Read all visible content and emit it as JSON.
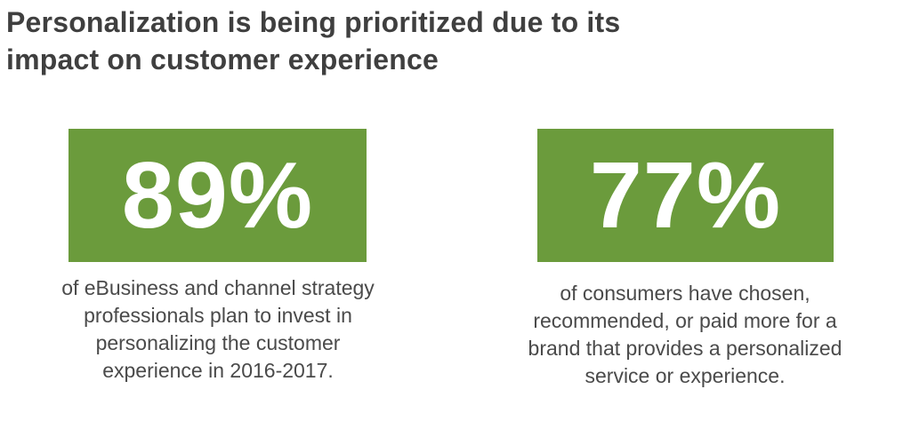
{
  "title": {
    "line1": "Personalization is being prioritized due to its",
    "line2": "impact on customer experience"
  },
  "stats": [
    {
      "value": "89%",
      "description": [
        "of eBusiness and channel strategy",
        "professionals plan to invest in",
        "personalizing the customer",
        "experience in 2016-2017."
      ]
    },
    {
      "value": "77%",
      "description": [
        "of consumers have chosen,",
        "recommended, or paid more for a",
        "brand that provides a personalized",
        "service or experience."
      ]
    }
  ],
  "colors": {
    "accent_green": "#6b9b3c",
    "title_text": "#3f3f3f",
    "body_text": "#4a4a4a",
    "stat_text": "#ffffff"
  }
}
